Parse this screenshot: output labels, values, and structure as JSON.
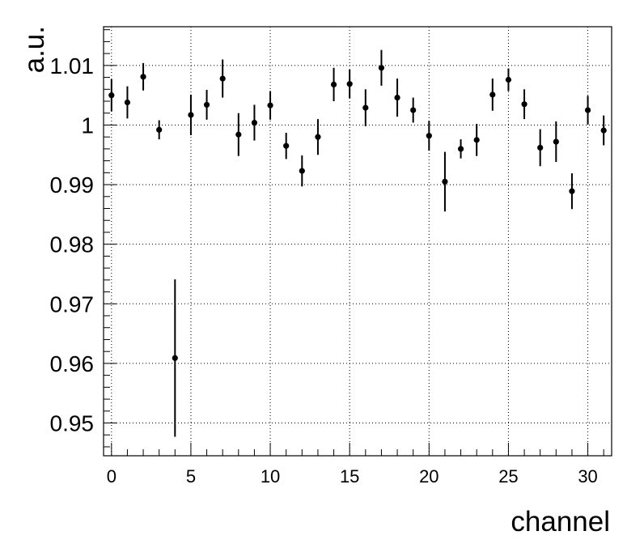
{
  "chart_data": {
    "type": "scatter",
    "title": "",
    "xlabel": "channel",
    "ylabel": "a.u.",
    "xlim": [
      -0.5,
      31.5
    ],
    "ylim": [
      0.9445,
      1.0165
    ],
    "grid": true,
    "x_ticks": [
      0,
      5,
      10,
      15,
      20,
      25,
      30
    ],
    "x_tick_labels": [
      "0",
      "5",
      "10",
      "15",
      "20",
      "25",
      "30"
    ],
    "y_ticks": [
      0.95,
      0.96,
      0.97,
      0.98,
      0.99,
      1.0,
      1.01
    ],
    "y_tick_labels": [
      "0.95",
      "0.96",
      "0.97",
      "0.98",
      "0.99",
      "1",
      "1.01"
    ],
    "series": [
      {
        "x": [
          0,
          1,
          2,
          3,
          4,
          5,
          6,
          7,
          8,
          9,
          10,
          11,
          12,
          13,
          14,
          15,
          16,
          17,
          18,
          19,
          20,
          21,
          22,
          23,
          24,
          25,
          26,
          27,
          28,
          29,
          30,
          31
        ],
        "y": [
          1.005,
          1.0038,
          1.0081,
          0.9992,
          0.9609,
          1.0017,
          1.0034,
          1.0078,
          0.9984,
          1.0004,
          1.0033,
          0.9965,
          0.9923,
          0.998,
          1.0068,
          1.0069,
          1.0029,
          1.0096,
          1.0046,
          1.0025,
          0.9982,
          0.9905,
          0.996,
          0.9975,
          1.0051,
          1.0076,
          1.0035,
          0.9962,
          0.9972,
          0.9889,
          1.0025,
          0.9991
        ],
        "err": [
          0.0027,
          0.0027,
          0.0023,
          0.0016,
          0.0132,
          0.0034,
          0.0025,
          0.0032,
          0.0036,
          0.003,
          0.0024,
          0.0022,
          0.0026,
          0.003,
          0.0028,
          0.0024,
          0.0031,
          0.003,
          0.0032,
          0.0021,
          0.0025,
          0.005,
          0.0016,
          0.0027,
          0.0027,
          0.0019,
          0.0025,
          0.0031,
          0.0034,
          0.003,
          0.0024,
          0.0025
        ]
      }
    ]
  }
}
